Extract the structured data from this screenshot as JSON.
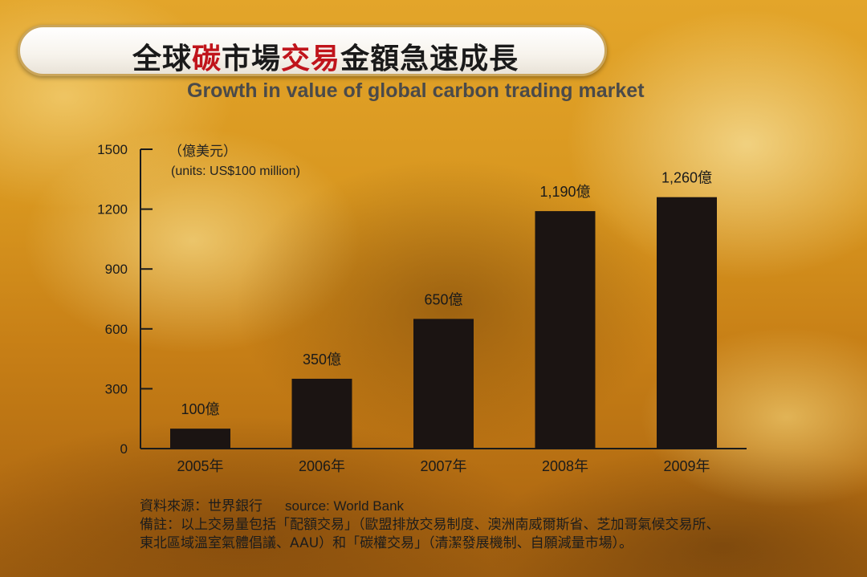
{
  "title": {
    "part1": "全球",
    "part2": "碳",
    "part3": "市場",
    "part4": "交易",
    "part5": "金額急速成長"
  },
  "subtitle": "Growth in value of global carbon trading market",
  "units": {
    "zh": "（億美元）",
    "en": "(units: US$100 million)"
  },
  "chart_data": {
    "type": "bar",
    "categories": [
      "2005年",
      "2006年",
      "2007年",
      "2008年",
      "2009年"
    ],
    "values": [
      100,
      350,
      650,
      1190,
      1260
    ],
    "data_labels": [
      "100億",
      "350億",
      "650億",
      "1,190億",
      "1,260億"
    ],
    "yticks": [
      0,
      300,
      600,
      900,
      1200,
      1500
    ],
    "ylim": [
      0,
      1500
    ],
    "bar_color": "#1b1412",
    "grid": false
  },
  "footer": {
    "source_zh": "資料來源：世界銀行",
    "source_en": "source: World Bank",
    "note_line1": "備註：以上交易量包括「配額交易」（歐盟排放交易制度、澳洲南威爾斯省、芝加哥氣候交易所、",
    "note_line2": "東北區域溫室氣體倡議、AAU）和「碳權交易」（清潔發展機制、自願減量市場）。"
  }
}
